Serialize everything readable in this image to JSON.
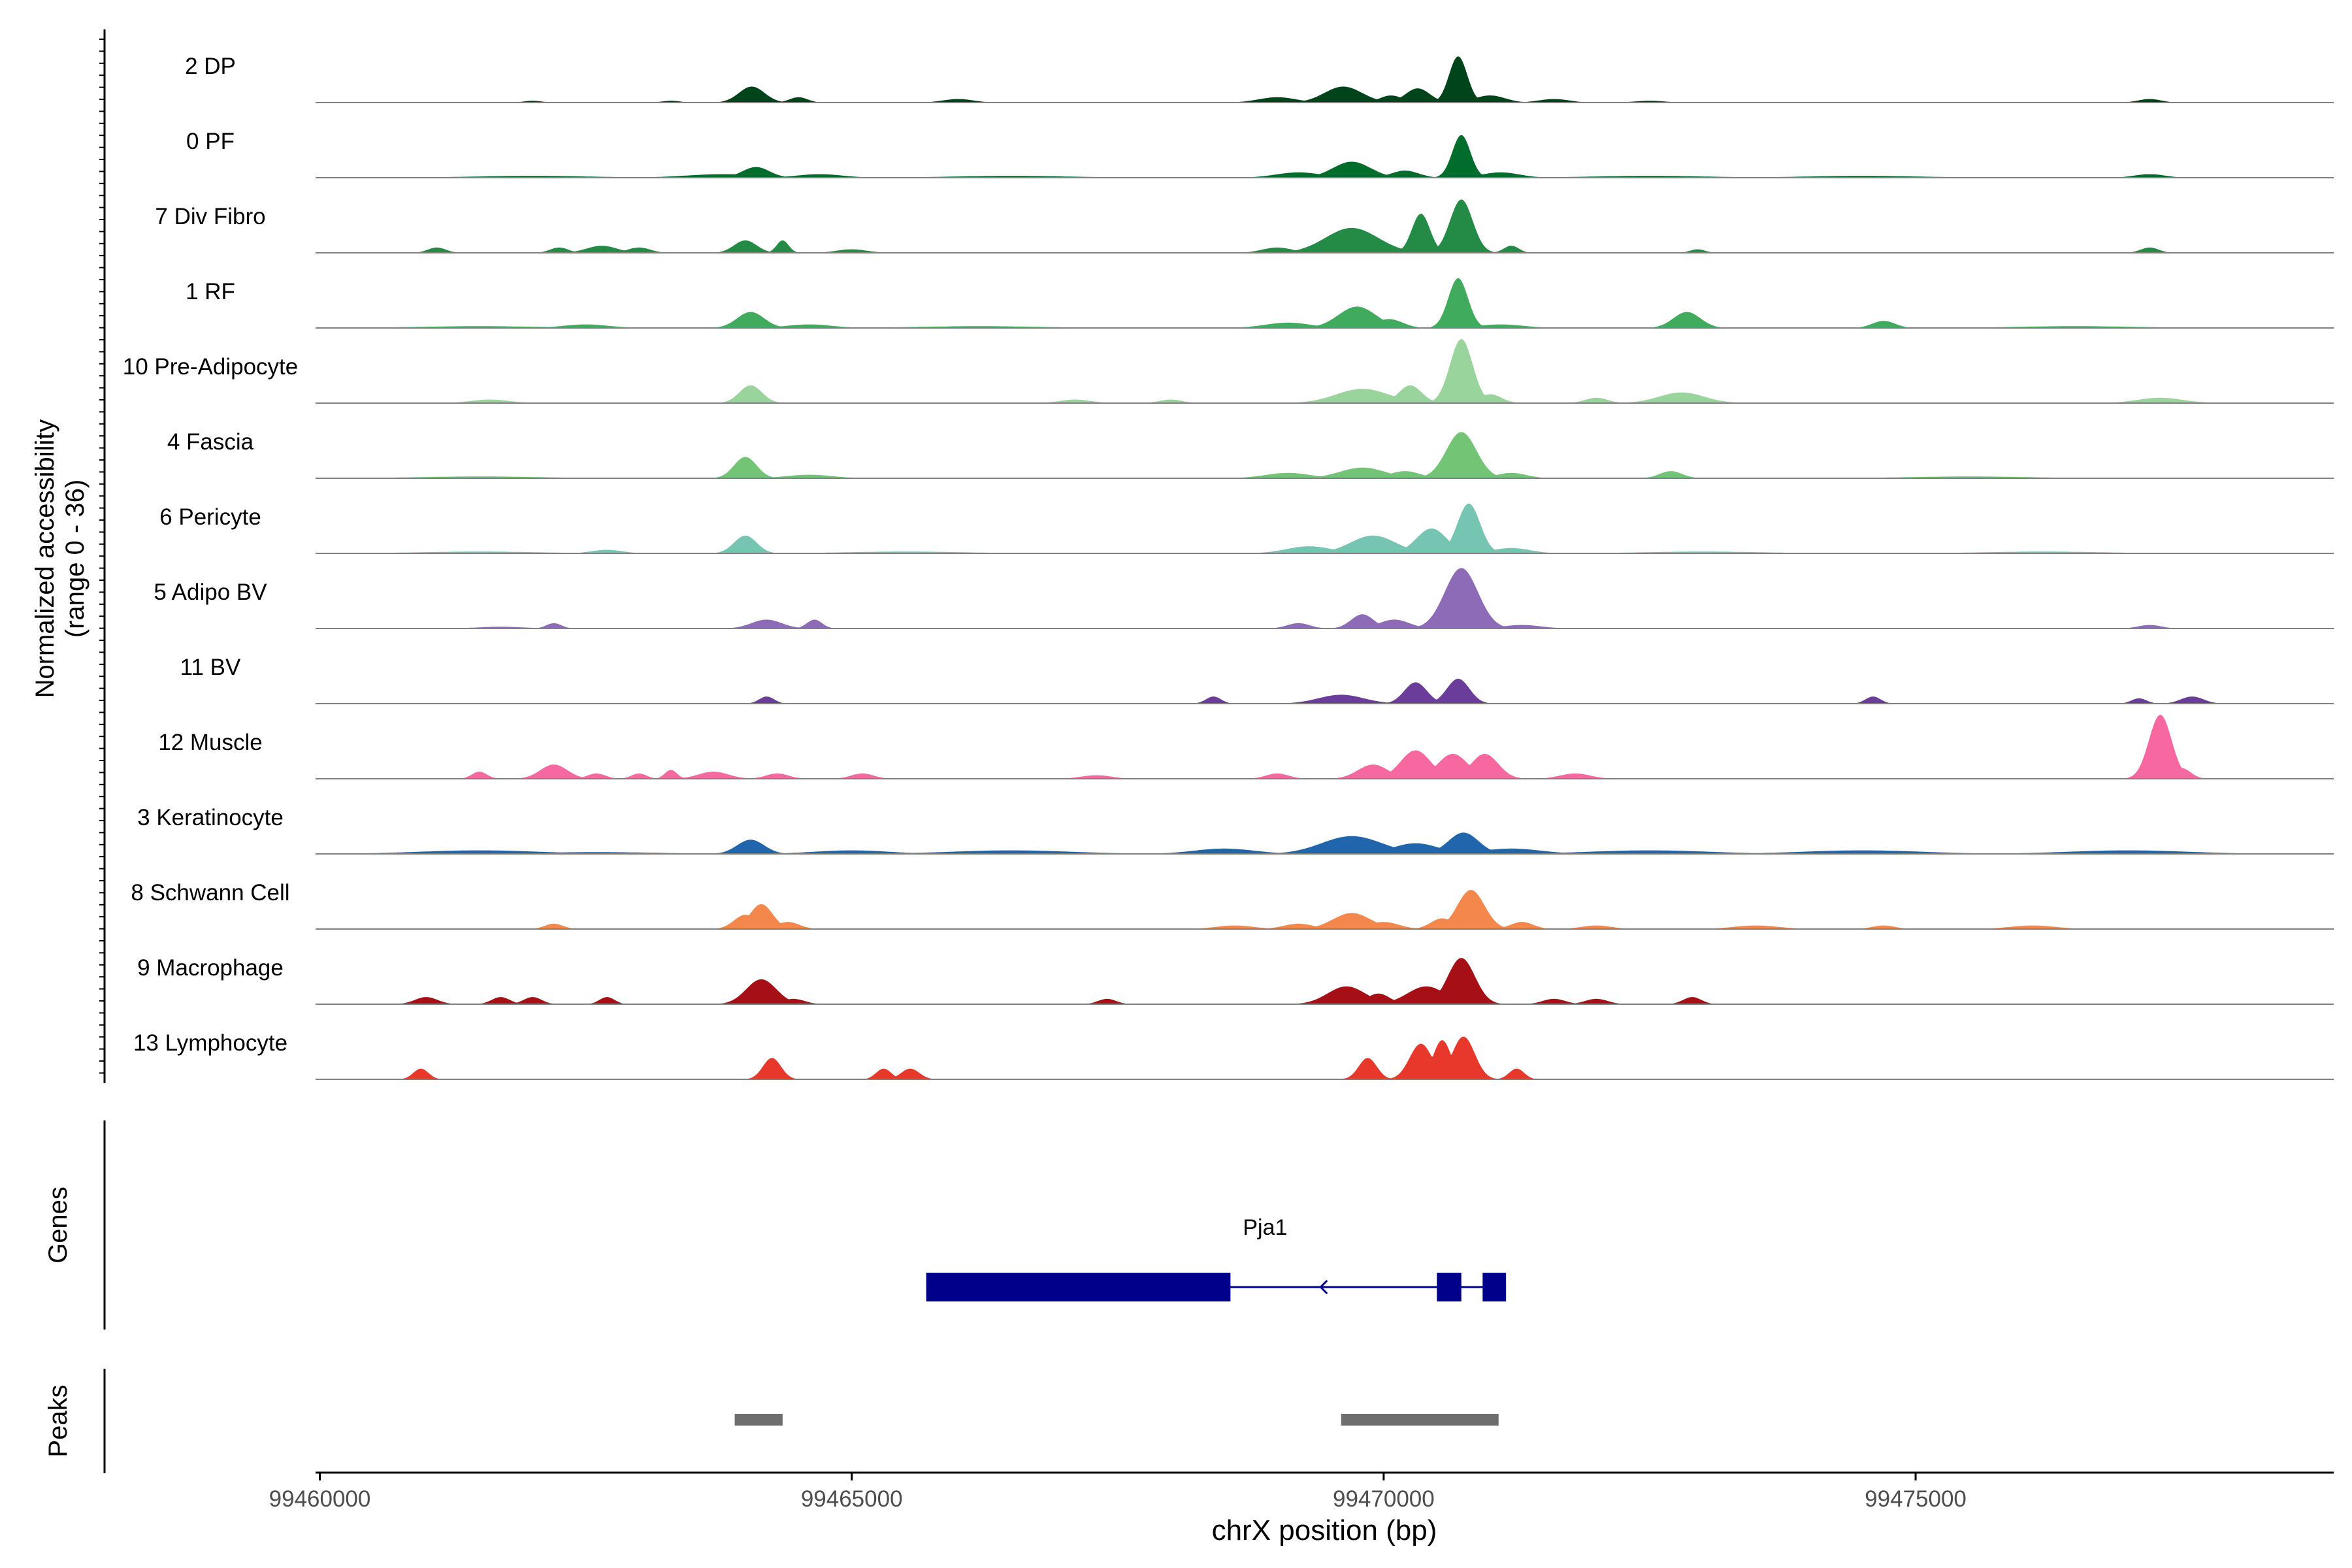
{
  "chart_data": {
    "type": "area",
    "title": "",
    "xlabel": "chrX position (bp)",
    "ylabel_line1": "Normalized accessibility",
    "ylabel_line2": "(range 0 - 36)",
    "ylim": [
      0,
      36
    ],
    "xlim": [
      99459960,
      99478930
    ],
    "xticks": [
      99460000,
      99465000,
      99470000,
      99475000
    ],
    "xtick_labels": [
      "99460000",
      "99465000",
      "99470000",
      "99475000"
    ],
    "tracks": [
      {
        "name": "2 DP",
        "color": "#00441b",
        "peaks": [
          [
            99462000,
            1,
            120
          ],
          [
            99463300,
            1,
            120
          ],
          [
            99464060,
            9,
            170
          ],
          [
            99464500,
            3,
            120
          ],
          [
            99466000,
            2,
            200
          ],
          [
            99469000,
            3,
            250
          ],
          [
            99469620,
            9,
            250
          ],
          [
            99470070,
            4,
            150
          ],
          [
            99470320,
            8,
            160
          ],
          [
            99470700,
            26,
            120
          ],
          [
            99471000,
            4,
            200
          ],
          [
            99471600,
            2,
            200
          ],
          [
            99472500,
            1,
            200
          ],
          [
            99477200,
            2,
            150
          ]
        ]
      },
      {
        "name": "0 PF",
        "color": "#006d2c",
        "peaks": [
          [
            99462000,
            1,
            800
          ],
          [
            99463800,
            2,
            500
          ],
          [
            99464100,
            6,
            180
          ],
          [
            99464700,
            2,
            300
          ],
          [
            99466500,
            1,
            800
          ],
          [
            99469200,
            3,
            300
          ],
          [
            99469700,
            9,
            250
          ],
          [
            99470200,
            4,
            180
          ],
          [
            99470730,
            24,
            120
          ],
          [
            99471100,
            3,
            250
          ],
          [
            99472500,
            1,
            800
          ],
          [
            99474500,
            1,
            800
          ],
          [
            99477200,
            2,
            200
          ]
        ]
      },
      {
        "name": "7 Div Fibro",
        "color": "#238b45",
        "peaks": [
          [
            99461100,
            3,
            120
          ],
          [
            99462250,
            3,
            120
          ],
          [
            99462650,
            4,
            200
          ],
          [
            99463000,
            3,
            150
          ],
          [
            99464000,
            7,
            150
          ],
          [
            99464350,
            7,
            80
          ],
          [
            99465000,
            2,
            200
          ],
          [
            99469000,
            3,
            200
          ],
          [
            99469700,
            14,
            350
          ],
          [
            99470350,
            22,
            120
          ],
          [
            99470730,
            30,
            150
          ],
          [
            99471200,
            4,
            100
          ],
          [
            99472950,
            2,
            100
          ],
          [
            99477200,
            3,
            120
          ]
        ]
      },
      {
        "name": "1 RF",
        "color": "#41ab5d",
        "peaks": [
          [
            99461500,
            1,
            800
          ],
          [
            99462500,
            2,
            300
          ],
          [
            99464050,
            9,
            180
          ],
          [
            99464600,
            2,
            300
          ],
          [
            99466200,
            1,
            800
          ],
          [
            99469100,
            3,
            300
          ],
          [
            99469750,
            12,
            250
          ],
          [
            99470050,
            5,
            180
          ],
          [
            99470700,
            28,
            130
          ],
          [
            99471100,
            2,
            300
          ],
          [
            99472850,
            9,
            180
          ],
          [
            99474700,
            4,
            150
          ],
          [
            99476500,
            1,
            800
          ]
        ]
      },
      {
        "name": "10 Pre-Adipocyte",
        "color": "#98d49b",
        "peaks": [
          [
            99461600,
            2,
            250
          ],
          [
            99464050,
            10,
            150
          ],
          [
            99467100,
            2,
            200
          ],
          [
            99468000,
            2,
            150
          ],
          [
            99469800,
            8,
            350
          ],
          [
            99470250,
            10,
            150
          ],
          [
            99470730,
            36,
            150
          ],
          [
            99471000,
            5,
            150
          ],
          [
            99472000,
            3,
            150
          ],
          [
            99472800,
            6,
            300
          ],
          [
            99477300,
            3,
            300
          ]
        ]
      },
      {
        "name": "4 Fascia",
        "color": "#74c476",
        "peaks": [
          [
            99461500,
            1,
            800
          ],
          [
            99464000,
            12,
            150
          ],
          [
            99464600,
            2,
            300
          ],
          [
            99469100,
            3,
            300
          ],
          [
            99469800,
            6,
            300
          ],
          [
            99470200,
            4,
            200
          ],
          [
            99470730,
            26,
            200
          ],
          [
            99471200,
            3,
            200
          ],
          [
            99472700,
            4,
            150
          ],
          [
            99475500,
            1,
            800
          ]
        ]
      },
      {
        "name": "6 Pericyte",
        "color": "#76c4b2",
        "peaks": [
          [
            99461500,
            1,
            800
          ],
          [
            99462700,
            2,
            200
          ],
          [
            99464000,
            10,
            150
          ],
          [
            99465500,
            1,
            800
          ],
          [
            99469300,
            4,
            300
          ],
          [
            99469900,
            10,
            300
          ],
          [
            99470450,
            14,
            200
          ],
          [
            99470800,
            28,
            150
          ],
          [
            99471200,
            3,
            250
          ],
          [
            99473000,
            1,
            800
          ],
          [
            99476200,
            1,
            800
          ]
        ]
      },
      {
        "name": "5 Adipo BV",
        "color": "#8e6bb7",
        "peaks": [
          [
            99461700,
            1,
            300
          ],
          [
            99462200,
            3,
            100
          ],
          [
            99464200,
            5,
            200
          ],
          [
            99464650,
            5,
            100
          ],
          [
            99469200,
            3,
            150
          ],
          [
            99469800,
            8,
            150
          ],
          [
            99470100,
            5,
            200
          ],
          [
            99470730,
            34,
            220
          ],
          [
            99471300,
            2,
            250
          ],
          [
            99477200,
            2,
            150
          ]
        ]
      },
      {
        "name": "11 BV",
        "color": "#6a3d9a",
        "peaks": [
          [
            99464200,
            4,
            100
          ],
          [
            99468400,
            4,
            100
          ],
          [
            99469600,
            5,
            300
          ],
          [
            99470300,
            12,
            150
          ],
          [
            99470700,
            14,
            150
          ],
          [
            99474600,
            4,
            100
          ],
          [
            99477100,
            3,
            100
          ],
          [
            99477600,
            4,
            150
          ]
        ]
      },
      {
        "name": "12 Muscle",
        "color": "#f768a1",
        "peaks": [
          [
            99461500,
            4,
            100
          ],
          [
            99462200,
            8,
            180
          ],
          [
            99462600,
            3,
            120
          ],
          [
            99463000,
            3,
            100
          ],
          [
            99463300,
            5,
            80
          ],
          [
            99463700,
            4,
            200
          ],
          [
            99464300,
            3,
            150
          ],
          [
            99465100,
            3,
            150
          ],
          [
            99467300,
            2,
            200
          ],
          [
            99469000,
            3,
            150
          ],
          [
            99469900,
            8,
            200
          ],
          [
            99470300,
            16,
            200
          ],
          [
            99470650,
            14,
            200
          ],
          [
            99470950,
            14,
            180
          ],
          [
            99471800,
            3,
            200
          ],
          [
            99477300,
            36,
            150
          ],
          [
            99477500,
            6,
            120
          ]
        ]
      },
      {
        "name": "3 Keratinocyte",
        "color": "#2166ac",
        "peaks": [
          [
            99461500,
            2,
            800
          ],
          [
            99462600,
            1,
            800
          ],
          [
            99464050,
            8,
            180
          ],
          [
            99465000,
            2,
            500
          ],
          [
            99466500,
            2,
            800
          ],
          [
            99468500,
            3,
            400
          ],
          [
            99469700,
            10,
            400
          ],
          [
            99470300,
            6,
            300
          ],
          [
            99470750,
            12,
            200
          ],
          [
            99471200,
            3,
            400
          ],
          [
            99472500,
            2,
            800
          ],
          [
            99474500,
            2,
            800
          ],
          [
            99477000,
            2,
            800
          ]
        ]
      },
      {
        "name": "8 Schwann Cell",
        "color": "#f4874b",
        "peaks": [
          [
            99462200,
            3,
            120
          ],
          [
            99464000,
            8,
            150
          ],
          [
            99464150,
            14,
            150
          ],
          [
            99464400,
            4,
            150
          ],
          [
            99468600,
            2,
            250
          ],
          [
            99469200,
            3,
            200
          ],
          [
            99469700,
            9,
            250
          ],
          [
            99470000,
            4,
            200
          ],
          [
            99470550,
            6,
            150
          ],
          [
            99470820,
            22,
            180
          ],
          [
            99471300,
            4,
            150
          ],
          [
            99472000,
            2,
            200
          ],
          [
            99473500,
            2,
            300
          ],
          [
            99474700,
            2,
            150
          ],
          [
            99476100,
            2,
            300
          ]
        ]
      },
      {
        "name": "9 Macrophage",
        "color": "#a50f15",
        "peaks": [
          [
            99461000,
            4,
            150
          ],
          [
            99461700,
            4,
            120
          ],
          [
            99462000,
            4,
            120
          ],
          [
            99462700,
            4,
            100
          ],
          [
            99464150,
            14,
            200
          ],
          [
            99464450,
            3,
            150
          ],
          [
            99467400,
            3,
            120
          ],
          [
            99469650,
            10,
            250
          ],
          [
            99469950,
            6,
            150
          ],
          [
            99470400,
            10,
            250
          ],
          [
            99470730,
            26,
            180
          ],
          [
            99471600,
            3,
            150
          ],
          [
            99472000,
            3,
            150
          ],
          [
            99472900,
            4,
            120
          ]
        ]
      },
      {
        "name": "13 Lymphocyte",
        "color": "#e8382b",
        "peaks": [
          [
            99460950,
            6,
            100
          ],
          [
            99464250,
            12,
            120
          ],
          [
            99465300,
            6,
            100
          ],
          [
            99465550,
            6,
            120
          ],
          [
            99469850,
            12,
            120
          ],
          [
            99470350,
            20,
            150
          ],
          [
            99470550,
            22,
            120
          ],
          [
            99470750,
            24,
            150
          ],
          [
            99471250,
            6,
            100
          ]
        ]
      }
    ],
    "genes": [
      {
        "name": "Pja1",
        "strand": "-",
        "start": 99465700,
        "end": 99471150,
        "exons": [
          [
            99465700,
            99468560
          ],
          [
            99470500,
            99470730
          ],
          [
            99470930,
            99471150
          ]
        ]
      }
    ],
    "peaks_track": [
      [
        99463900,
        99464350
      ],
      [
        99469600,
        99471080
      ]
    ],
    "panel_labels": {
      "genes": "Genes",
      "peaks": "Peaks"
    }
  }
}
